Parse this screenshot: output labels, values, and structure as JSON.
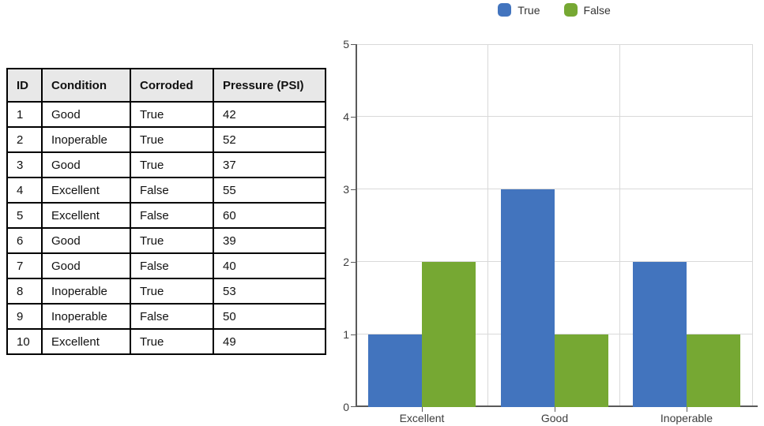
{
  "table": {
    "headers": [
      "ID",
      "Condition",
      "Corroded",
      "Pressure (PSI)"
    ],
    "rows": [
      [
        "1",
        "Good",
        "True",
        "42"
      ],
      [
        "2",
        "Inoperable",
        "True",
        "52"
      ],
      [
        "3",
        "Good",
        "True",
        "37"
      ],
      [
        "4",
        "Excellent",
        "False",
        "55"
      ],
      [
        "5",
        "Excellent",
        "False",
        "60"
      ],
      [
        "6",
        "Good",
        "True",
        "39"
      ],
      [
        "7",
        "Good",
        "False",
        "40"
      ],
      [
        "8",
        "Inoperable",
        "True",
        "53"
      ],
      [
        "9",
        "Inoperable",
        "False",
        "50"
      ],
      [
        "10",
        "Excellent",
        "True",
        "49"
      ]
    ]
  },
  "chart_data": {
    "type": "bar",
    "title": "",
    "categories": [
      "Excellent",
      "Good",
      "Inoperable"
    ],
    "series": [
      {
        "name": "True",
        "color": "#4274BE",
        "values": [
          1,
          3,
          2
        ]
      },
      {
        "name": "False",
        "color": "#76A833",
        "values": [
          2,
          1,
          1
        ]
      }
    ],
    "xlabel": "",
    "ylabel": "",
    "ylim": [
      0,
      5
    ],
    "yticks": [
      0,
      1,
      2,
      3,
      4,
      5
    ],
    "grid": true,
    "legend_position": "top-center",
    "legend": [
      "True",
      "False"
    ]
  },
  "colors": {
    "series_true": "#4274BE",
    "series_false": "#76A833",
    "gridline": "#D9D9D9",
    "axis": "#5A5A5A",
    "tick_label": "#3D3D3D",
    "table_border": "#000000",
    "table_header_bg": "#E8E8E8",
    "background": "#FFFFFF"
  }
}
